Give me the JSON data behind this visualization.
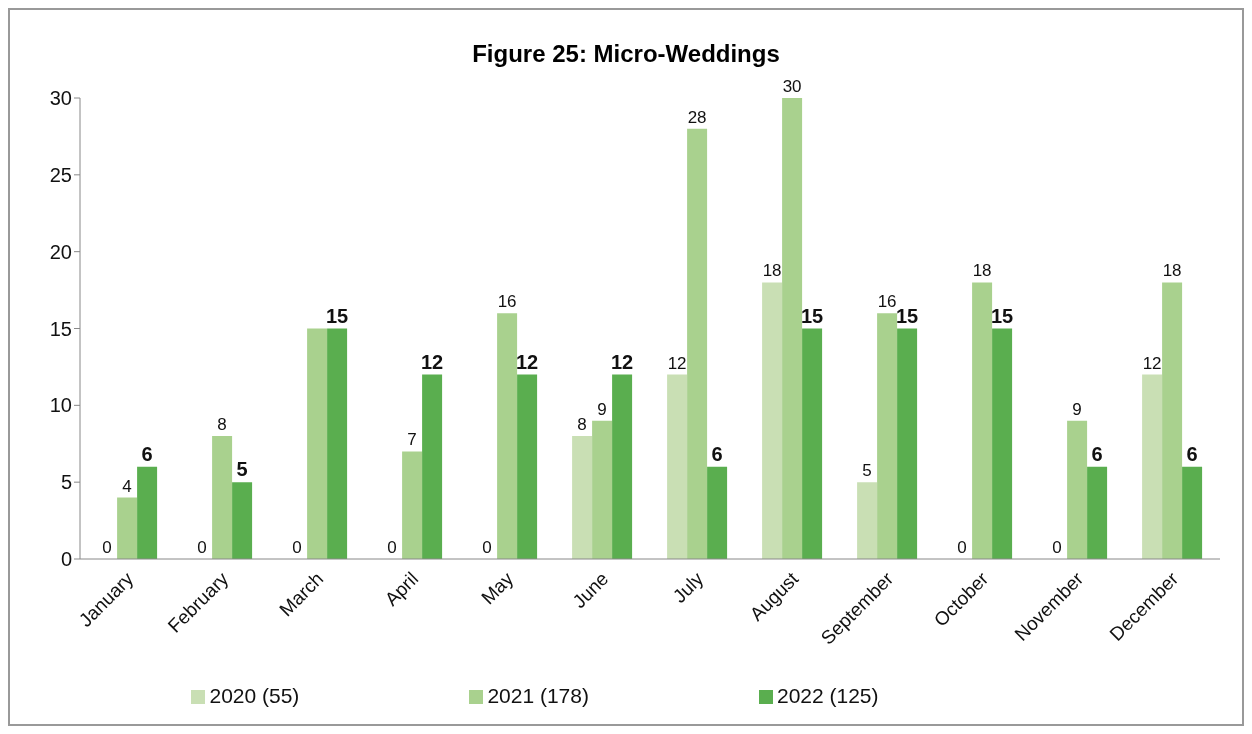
{
  "chart_data": {
    "type": "bar",
    "title": "Figure 25: Micro-Weddings",
    "categories": [
      "January",
      "February",
      "March",
      "April",
      "May",
      "June",
      "July",
      "August",
      "September",
      "October",
      "November",
      "December"
    ],
    "series": [
      {
        "name": "2020 (55)",
        "color": "#c9dfb4",
        "values": [
          0,
          0,
          0,
          0,
          0,
          8,
          12,
          18,
          5,
          0,
          0,
          12
        ],
        "value_labels": [
          "0",
          "0",
          "0",
          "0",
          "0",
          "8",
          "12",
          "18",
          "5",
          "0",
          "0",
          "12"
        ]
      },
      {
        "name": "2021 (178)",
        "color": "#a9d18e",
        "values": [
          4,
          8,
          15,
          7,
          16,
          9,
          28,
          30,
          16,
          18,
          9,
          18
        ],
        "value_labels": [
          "4",
          "8",
          null,
          "7",
          "16",
          "9",
          "28",
          "30",
          "16",
          "18",
          "9",
          "18"
        ]
      },
      {
        "name": "2022 (125)",
        "color": "#5aae4f",
        "values": [
          6,
          5,
          15,
          12,
          12,
          12,
          6,
          15,
          15,
          15,
          6,
          6
        ],
        "value_labels": [
          "6",
          "5",
          "15",
          "12",
          "12",
          "12",
          "6",
          "15",
          "15",
          "15",
          "6",
          "6"
        ]
      }
    ],
    "ylim": [
      0,
      30
    ],
    "yticks": [
      0,
      5,
      10,
      15,
      20,
      25,
      30
    ],
    "grid": false,
    "legend": "bottom"
  }
}
